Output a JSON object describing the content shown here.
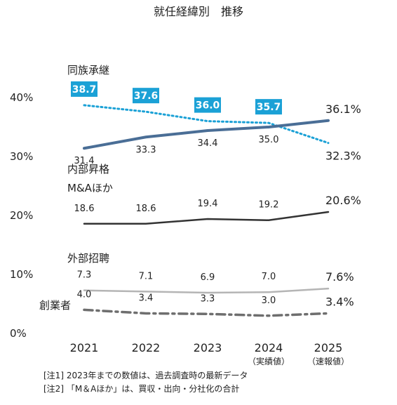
{
  "chart_data": {
    "type": "line",
    "title": "就任経緯別　推移",
    "x": [
      "2021",
      "2022",
      "2023",
      "2024",
      "2025"
    ],
    "x_sublabels": [
      "",
      "",
      "",
      "（実績値）",
      "（速報値）"
    ],
    "ylim": [
      0,
      40
    ],
    "yticks": [
      {
        "value": 0,
        "label": "0%"
      },
      {
        "value": 10,
        "label": "10%"
      },
      {
        "value": 20,
        "label": "20%"
      },
      {
        "value": 30,
        "label": "30%"
      },
      {
        "value": 40,
        "label": "40%"
      }
    ],
    "grid": false,
    "series": [
      {
        "name": "同族承継",
        "values": [
          38.7,
          37.6,
          36.0,
          35.7,
          32.3
        ],
        "labels": [
          "38.7",
          "37.6",
          "36.0",
          "35.7",
          "32.3%"
        ],
        "style": "dotted",
        "color": "#1ba1d6",
        "boxed": true
      },
      {
        "name": "内部昇格",
        "values": [
          31.4,
          33.3,
          34.4,
          35.0,
          36.1
        ],
        "labels": [
          "31.4",
          "33.3",
          "34.4",
          "35.0",
          "36.1%"
        ],
        "style": "solid",
        "color": "#4a6e96"
      },
      {
        "name": "M&Aほか",
        "values": [
          18.6,
          18.6,
          19.4,
          19.2,
          20.6
        ],
        "labels": [
          "18.6",
          "18.6",
          "19.4",
          "19.2",
          "20.6%"
        ],
        "style": "solid",
        "color": "#333333"
      },
      {
        "name": "外部招聘",
        "values": [
          7.3,
          7.1,
          6.9,
          7.0,
          7.6
        ],
        "labels": [
          "7.3",
          "7.1",
          "6.9",
          "7.0",
          "7.6%"
        ],
        "style": "solid",
        "color": "#b5b5b5"
      },
      {
        "name": "創業者",
        "values": [
          4.0,
          3.4,
          3.3,
          3.0,
          3.4
        ],
        "labels": [
          "4.0",
          "3.4",
          "3.3",
          "3.0",
          "3.4%"
        ],
        "style": "dashdot",
        "color": "#6e6e6e"
      }
    ]
  },
  "notes": [
    "[注1] 2023年までの数値は、過去調査時の最新データ",
    "[注2] 「M＆Aほか」は、買収・出向・分社化の合計"
  ]
}
